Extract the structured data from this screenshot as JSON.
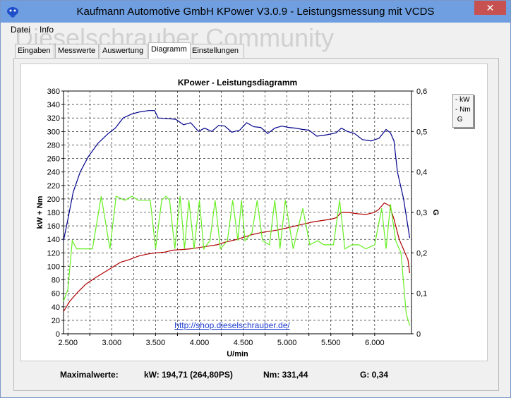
{
  "window": {
    "title": "Kaufmann Automotive GmbH  KPower V3.0.9 - Leistungsmessung mit VCDS",
    "close_label": "✕"
  },
  "menu": [
    "Datei",
    "Info"
  ],
  "watermark": "Dieselschrauber Community",
  "tabs": [
    "Eingaben",
    "Messwerte",
    "Auswertung",
    "Diagramm",
    "Einstellungen"
  ],
  "active_tab": "Diagramm",
  "legend": [
    {
      "marker": "-",
      "label": "kW"
    },
    {
      "marker": "-",
      "label": "Nm"
    },
    {
      "marker": "",
      "label": "G"
    }
  ],
  "footer": {
    "label": "Maximalwerte:",
    "kw": "kW: 194,71 (264,80PS)",
    "nm": "Nm: 331,44",
    "g": "G: 0,34"
  },
  "chart_data": {
    "type": "line",
    "title": "KPower - Leistungsdiagramm",
    "xlabel": "U/min",
    "ylabel": "kW + Nm",
    "y2label": "G",
    "annotation": "http://shop.dieselschrauber.de/",
    "xlim": [
      2450,
      6420
    ],
    "ylim": [
      0,
      360
    ],
    "y2lim": [
      0,
      0.6
    ],
    "x_ticks": [
      2500,
      2750,
      3000,
      3250,
      3500,
      3750,
      4000,
      4250,
      4500,
      4750,
      5000,
      5250,
      5500,
      5750,
      6000
    ],
    "x_tick_labels": [
      "2.500",
      "",
      "3.000",
      "",
      "3.500",
      "",
      "4.000",
      "",
      "4.500",
      "",
      "5.000",
      "",
      "5.500",
      "",
      "6.000"
    ],
    "y_ticks": [
      0,
      20,
      40,
      60,
      80,
      100,
      120,
      140,
      160,
      180,
      200,
      220,
      240,
      260,
      280,
      300,
      320,
      340,
      360
    ],
    "y2_ticks": [
      0,
      0.1,
      0.2,
      0.3,
      0.4,
      0.5,
      0.6
    ],
    "y2_tick_labels": [
      "0",
      "0,1",
      "0,2",
      "0,3",
      "0,4",
      "0,5",
      "0,6"
    ],
    "grid": true,
    "series": [
      {
        "name": "Nm",
        "axis": "left",
        "color": "#00008b",
        "x": [
          2450,
          2500,
          2560,
          2640,
          2730,
          2840,
          2960,
          3040,
          3130,
          3230,
          3320,
          3420,
          3490,
          3530,
          3650,
          3730,
          3820,
          3900,
          3990,
          4060,
          4140,
          4220,
          4290,
          4370,
          4460,
          4540,
          4620,
          4700,
          4780,
          4860,
          4940,
          5020,
          5100,
          5180,
          5250,
          5340,
          5450,
          5560,
          5620,
          5690,
          5770,
          5860,
          5960,
          6050,
          6130,
          6180,
          6220,
          6260,
          6330,
          6400
        ],
        "y": [
          138,
          170,
          210,
          240,
          262,
          282,
          297,
          305,
          320,
          326,
          329,
          331,
          331,
          320,
          319,
          318,
          310,
          313,
          300,
          305,
          300,
          309,
          308,
          299,
          302,
          313,
          307,
          306,
          297,
          305,
          308,
          306,
          305,
          303,
          302,
          293,
          295,
          298,
          305,
          300,
          297,
          288,
          286,
          290,
          303,
          298,
          286,
          240,
          200,
          142
        ]
      },
      {
        "name": "kW",
        "axis": "left",
        "color": "#b00000",
        "x": [
          2450,
          2520,
          2600,
          2700,
          2800,
          2900,
          3000,
          3100,
          3200,
          3300,
          3400,
          3500,
          3600,
          3700,
          3800,
          3900,
          4000,
          4100,
          4200,
          4300,
          4400,
          4500,
          4600,
          4700,
          4800,
          4900,
          5000,
          5100,
          5200,
          5300,
          5400,
          5500,
          5560,
          5620,
          5700,
          5800,
          5900,
          6000,
          6050,
          6110,
          6170,
          6220,
          6280,
          6330,
          6380,
          6400
        ],
        "y": [
          33,
          48,
          60,
          73,
          82,
          90,
          98,
          106,
          110,
          115,
          118,
          120,
          121,
          124,
          125,
          126,
          128,
          130,
          132,
          136,
          139,
          143,
          147,
          150,
          152,
          154,
          157,
          160,
          163,
          166,
          168,
          170,
          172,
          180,
          180,
          178,
          177,
          180,
          185,
          194,
          190,
          170,
          140,
          125,
          110,
          90
        ]
      },
      {
        "name": "G",
        "axis": "right",
        "color": "#66ee22",
        "x": [
          2450,
          2500,
          2550,
          2600,
          2700,
          2780,
          2880,
          2980,
          3050,
          3150,
          3230,
          3300,
          3360,
          3440,
          3500,
          3570,
          3620,
          3660,
          3720,
          3780,
          3830,
          3880,
          3940,
          4000,
          4050,
          4120,
          4180,
          4240,
          4320,
          4380,
          4440,
          4480,
          4520,
          4600,
          4660,
          4720,
          4800,
          4860,
          4920,
          4980,
          5070,
          5180,
          5260,
          5350,
          5420,
          5530,
          5600,
          5660,
          5740,
          5820,
          5900,
          6000,
          6080,
          6130,
          6180,
          6240,
          6300,
          6360,
          6400
        ],
        "y": [
          0.08,
          0.11,
          0.23,
          0.21,
          0.21,
          0.21,
          0.34,
          0.21,
          0.34,
          0.33,
          0.34,
          0.33,
          0.33,
          0.33,
          0.21,
          0.33,
          0.34,
          0.33,
          0.21,
          0.34,
          0.21,
          0.33,
          0.21,
          0.33,
          0.21,
          0.23,
          0.33,
          0.21,
          0.23,
          0.33,
          0.23,
          0.33,
          0.23,
          0.25,
          0.33,
          0.23,
          0.22,
          0.33,
          0.21,
          0.33,
          0.21,
          0.31,
          0.22,
          0.23,
          0.22,
          0.22,
          0.33,
          0.21,
          0.22,
          0.22,
          0.21,
          0.22,
          0.31,
          0.21,
          0.32,
          0.23,
          0.2,
          0.05,
          0.02
        ]
      }
    ]
  }
}
